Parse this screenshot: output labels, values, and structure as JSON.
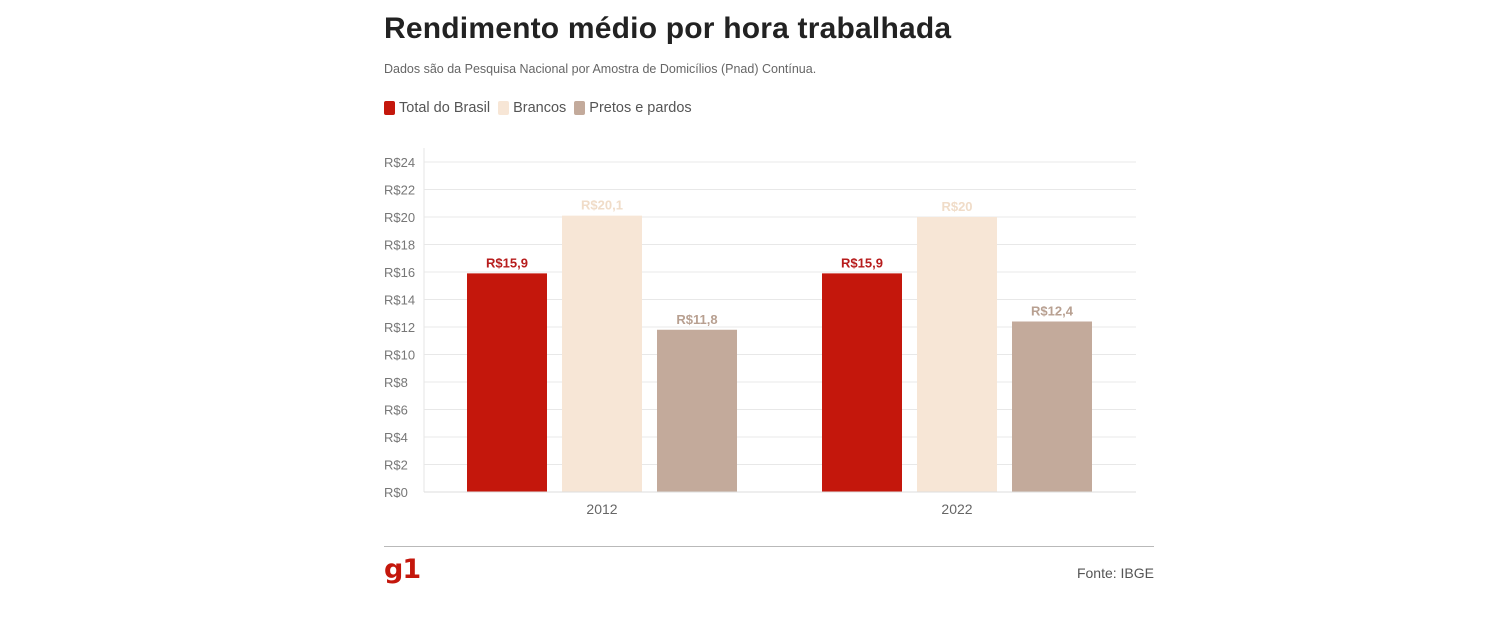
{
  "title": "Rendimento médio por hora trabalhada",
  "subtitle": "Dados são da Pesquisa Nacional por Amostra de Domicílios (Pnad) Contínua.",
  "source": "Fonte: IBGE",
  "logo_text": "g1",
  "chart_data": {
    "type": "bar",
    "categories": [
      "2012",
      "2022"
    ],
    "series": [
      {
        "name": "Total do Brasil",
        "color": "#c4170c",
        "label_color": "#b71c1c",
        "values": [
          15.9,
          15.9
        ],
        "labels": [
          "R$15,9",
          "R$15,9"
        ]
      },
      {
        "name": "Brancos",
        "color": "#f7e6d6",
        "label_color": "#f0dcc8",
        "values": [
          20.1,
          20
        ],
        "labels": [
          "R$20,1",
          "R$20"
        ]
      },
      {
        "name": "Pretos e pardos",
        "color": "#c3aa9b",
        "label_color": "#b8a091",
        "values": [
          11.8,
          12.4
        ],
        "labels": [
          "R$11,8",
          "R$12,4"
        ]
      }
    ],
    "ylim": [
      0,
      24
    ],
    "yticks": [
      0,
      2,
      4,
      6,
      8,
      10,
      12,
      14,
      16,
      18,
      20,
      22,
      24
    ],
    "ytick_labels": [
      "R$0",
      "R$2",
      "R$4",
      "R$6",
      "R$8",
      "R$10",
      "R$12",
      "R$14",
      "R$16",
      "R$18",
      "R$20",
      "R$22",
      "R$24"
    ],
    "grid": true,
    "legend_position": "top-left"
  }
}
